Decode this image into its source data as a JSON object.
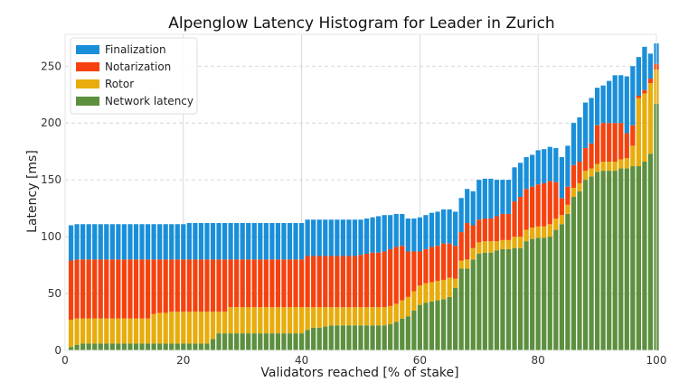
{
  "chart_data": {
    "type": "bar",
    "stacked": true,
    "title": "Alpenglow Latency Histogram for Leader in Zurich",
    "xlabel": "Validators reached [% of stake]",
    "ylabel": "Latency [ms]",
    "xlim": [
      0,
      100
    ],
    "ylim": [
      0,
      278
    ],
    "xticks": [
      0,
      20,
      40,
      60,
      80,
      100
    ],
    "yticks": [
      0,
      50,
      100,
      150,
      200,
      250
    ],
    "grid": true,
    "legend_position": "top-left",
    "x": [
      1,
      2,
      3,
      4,
      5,
      6,
      7,
      8,
      9,
      10,
      11,
      12,
      13,
      14,
      15,
      16,
      17,
      18,
      19,
      20,
      21,
      22,
      23,
      24,
      25,
      26,
      27,
      28,
      29,
      30,
      31,
      32,
      33,
      34,
      35,
      36,
      37,
      38,
      39,
      40,
      41,
      42,
      43,
      44,
      45,
      46,
      47,
      48,
      49,
      50,
      51,
      52,
      53,
      54,
      55,
      56,
      57,
      58,
      59,
      60,
      61,
      62,
      63,
      64,
      65,
      66,
      67,
      68,
      69,
      70,
      71,
      72,
      73,
      74,
      75,
      76,
      77,
      78,
      79,
      80,
      81,
      82,
      83,
      84,
      85,
      86,
      87,
      88,
      89,
      90,
      91,
      92,
      93,
      94,
      95,
      96,
      97,
      98,
      99,
      100
    ],
    "series": [
      {
        "name": "Network latency",
        "color": "#5c8f3e",
        "values": [
          3,
          5,
          6,
          6,
          6,
          6,
          6,
          6,
          6,
          6,
          6,
          6,
          6,
          6,
          6,
          6,
          6,
          6,
          6,
          6,
          6,
          6,
          6,
          6,
          10,
          15,
          15,
          15,
          15,
          15,
          15,
          15,
          15,
          15,
          15,
          15,
          15,
          15,
          15,
          15,
          18,
          20,
          20,
          21,
          22,
          22,
          22,
          22,
          22,
          22,
          22,
          22,
          22,
          22,
          23,
          25,
          28,
          30,
          35,
          40,
          42,
          43,
          44,
          45,
          47,
          55,
          72,
          72,
          80,
          85,
          86,
          86,
          88,
          89,
          89,
          90,
          90,
          96,
          98,
          99,
          99,
          100,
          106,
          111,
          120,
          135,
          140,
          150,
          153,
          157,
          158,
          158,
          158,
          160,
          160,
          162,
          162,
          166,
          173,
          217
        ]
      },
      {
        "name": "Rotor",
        "color": "#e8ad0c",
        "values": [
          24,
          23,
          22,
          22,
          22,
          22,
          22,
          22,
          22,
          22,
          22,
          22,
          22,
          22,
          26,
          27,
          27,
          28,
          28,
          28,
          28,
          28,
          28,
          28,
          24,
          19,
          19,
          23,
          23,
          23,
          23,
          23,
          23,
          23,
          23,
          23,
          23,
          23,
          23,
          23,
          20,
          18,
          18,
          17,
          16,
          16,
          16,
          16,
          16,
          16,
          16,
          16,
          16,
          16,
          16,
          16,
          16,
          17,
          17,
          17,
          17,
          17,
          17,
          17,
          17,
          8,
          7,
          8,
          10,
          10,
          10,
          10,
          8,
          8,
          8,
          10,
          10,
          10,
          10,
          10,
          10,
          11,
          10,
          8,
          8,
          8,
          7,
          8,
          7,
          7,
          8,
          8,
          8,
          8,
          9,
          18,
          60,
          60,
          62,
          30
        ]
      },
      {
        "name": "Notarization",
        "color": "#f5420f",
        "values": [
          52,
          52,
          52,
          52,
          52,
          52,
          52,
          52,
          52,
          52,
          52,
          52,
          52,
          52,
          48,
          47,
          47,
          46,
          46,
          46,
          46,
          46,
          46,
          46,
          46,
          46,
          46,
          42,
          42,
          42,
          42,
          42,
          42,
          42,
          42,
          42,
          42,
          42,
          42,
          42,
          45,
          45,
          45,
          45,
          45,
          45,
          45,
          45,
          45,
          46,
          47,
          48,
          48,
          49,
          50,
          50,
          48,
          40,
          35,
          30,
          30,
          31,
          31,
          32,
          30,
          29,
          25,
          32,
          20,
          20,
          20,
          20,
          22,
          23,
          23,
          31,
          35,
          36,
          36,
          37,
          38,
          38,
          32,
          15,
          16,
          20,
          19,
          20,
          22,
          34,
          34,
          34,
          34,
          32,
          22,
          18,
          2,
          3,
          4,
          5
        ]
      },
      {
        "name": "Finalization",
        "color": "#1a8fd9",
        "values": [
          31,
          31,
          31,
          31,
          31,
          31,
          31,
          31,
          31,
          31,
          31,
          31,
          31,
          31,
          31,
          31,
          31,
          31,
          31,
          31,
          32,
          32,
          32,
          32,
          32,
          32,
          32,
          32,
          32,
          32,
          32,
          32,
          32,
          32,
          32,
          32,
          32,
          32,
          32,
          32,
          32,
          32,
          32,
          32,
          32,
          32,
          32,
          32,
          32,
          31,
          31,
          31,
          32,
          32,
          30,
          29,
          28,
          29,
          29,
          30,
          30,
          30,
          30,
          30,
          30,
          30,
          30,
          30,
          30,
          35,
          35,
          35,
          32,
          30,
          30,
          30,
          30,
          28,
          28,
          30,
          30,
          30,
          30,
          36,
          36,
          37,
          39,
          40,
          40,
          33,
          33,
          37,
          42,
          42,
          50,
          52,
          34,
          38,
          22,
          18
        ]
      }
    ]
  }
}
